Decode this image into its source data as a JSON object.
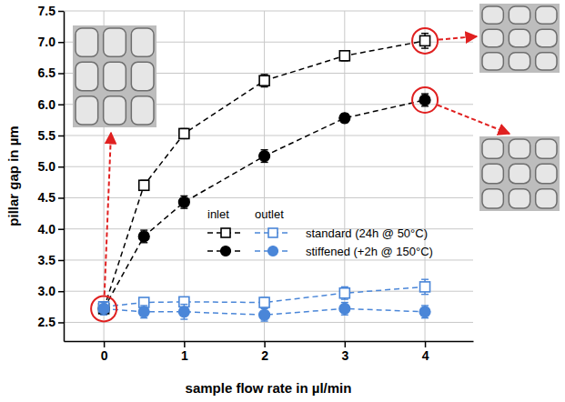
{
  "chart_data": {
    "type": "line",
    "x_label": "sample flow rate in µl/min",
    "y_label": "pillar gap in µm",
    "x": [
      0,
      0.5,
      1,
      2,
      3,
      4
    ],
    "xlim": [
      -0.5,
      4.6
    ],
    "xticks": [
      0,
      1,
      2,
      3,
      4
    ],
    "ylim": [
      2.2,
      7.5
    ],
    "yticks": [
      2.5,
      {
        "value": 3,
        "label": "3.0"
      },
      3.5,
      {
        "value": 4,
        "label": "4.0"
      },
      4.5,
      {
        "value": 5,
        "label": "5.0"
      },
      5.5,
      {
        "value": 6,
        "label": "6.0"
      },
      6.5,
      {
        "value": 7,
        "label": "7.0"
      },
      7.5
    ],
    "grid": true,
    "legend": "center right",
    "series": [
      {
        "name": "standard (24h @ 50°C)",
        "group": "inlet",
        "color": "#000000",
        "marker": "square-open",
        "line_style": "dashed",
        "values": [
          2.72,
          4.7,
          5.53,
          6.38,
          6.78,
          7.02
        ],
        "errors": [
          0.08,
          0.08,
          0.08,
          0.1,
          0.08,
          0.12
        ]
      },
      {
        "name": "stiffened (+2h @ 150°C)",
        "group": "inlet",
        "color": "#000000",
        "marker": "circle",
        "line_style": "dashed",
        "values": [
          2.72,
          3.88,
          4.43,
          5.17,
          5.78,
          6.07
        ],
        "errors": [
          0.08,
          0.1,
          0.1,
          0.1,
          0.07,
          0.1
        ]
      },
      {
        "name": "standard (24h @ 50°C)",
        "group": "outlet",
        "color": "#4a86d8",
        "marker": "square-open",
        "line_style": "dashed",
        "values": [
          2.75,
          2.82,
          2.83,
          2.82,
          2.97,
          3.07
        ],
        "errors": [
          0.08,
          0.07,
          0.07,
          0.08,
          0.1,
          0.12
        ]
      },
      {
        "name": "stiffened (+2h @ 150°C)",
        "group": "outlet",
        "color": "#4a86d8",
        "marker": "circle",
        "line_style": "dashed",
        "values": [
          2.72,
          2.67,
          2.67,
          2.62,
          2.72,
          2.67
        ],
        "errors": [
          0.1,
          0.1,
          0.12,
          0.1,
          0.1,
          0.1
        ]
      }
    ]
  }
}
